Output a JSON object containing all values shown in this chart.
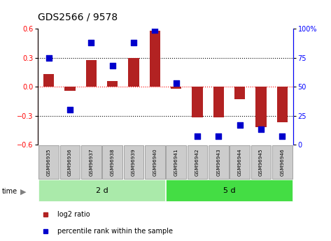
{
  "title": "GDS2566 / 9578",
  "samples": [
    "GSM96935",
    "GSM96936",
    "GSM96937",
    "GSM96938",
    "GSM96939",
    "GSM96940",
    "GSM96941",
    "GSM96942",
    "GSM96943",
    "GSM96944",
    "GSM96945",
    "GSM96946"
  ],
  "log2_ratio": [
    0.13,
    -0.04,
    0.28,
    0.06,
    0.3,
    0.58,
    -0.02,
    -0.32,
    -0.32,
    -0.13,
    -0.42,
    -0.37
  ],
  "percentile_rank": [
    75,
    30,
    88,
    68,
    88,
    99,
    53,
    7,
    7,
    17,
    13,
    7
  ],
  "groups": [
    {
      "label": "2 d",
      "start": 0,
      "end": 6,
      "color": "#aaeaaa"
    },
    {
      "label": "5 d",
      "start": 6,
      "end": 12,
      "color": "#44dd44"
    }
  ],
  "bar_color": "#B22222",
  "dot_color": "#0000CC",
  "ylim_left": [
    -0.6,
    0.6
  ],
  "ylim_right": [
    0,
    100
  ],
  "yticks_left": [
    -0.6,
    -0.3,
    0.0,
    0.3,
    0.6
  ],
  "yticks_right": [
    0,
    25,
    50,
    75,
    100
  ],
  "hlines_black": [
    0.3,
    -0.3
  ],
  "hline_red": 0.0,
  "sample_box_color": "#cccccc",
  "sample_box_edge": "#888888",
  "bar_width": 0.5,
  "dot_size": 40,
  "background_color": "#ffffff",
  "legend_items": [
    {
      "label": "log2 ratio",
      "color": "#B22222"
    },
    {
      "label": "percentile rank within the sample",
      "color": "#0000CC"
    }
  ]
}
